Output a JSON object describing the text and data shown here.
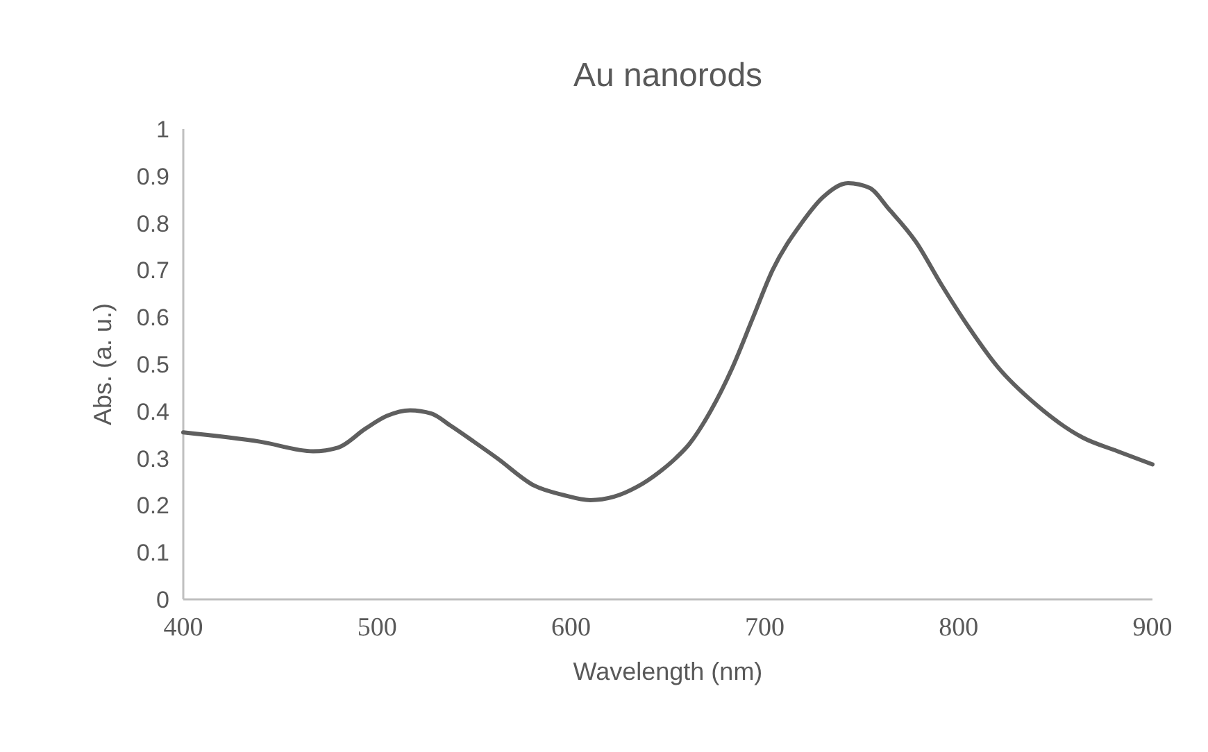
{
  "chart_data": {
    "type": "line",
    "title": "Au nanorods",
    "xlabel": "Wavelength (nm)",
    "ylabel": "Abs. (a. u.)",
    "x": [
      400,
      440,
      467,
      480,
      494,
      505,
      517,
      528,
      538,
      550,
      562,
      581,
      596,
      610,
      622,
      634,
      646,
      654,
      661,
      672,
      683,
      694,
      704,
      719,
      730,
      743,
      754,
      764,
      778,
      791,
      805,
      820,
      840,
      864,
      882,
      900
    ],
    "series": [
      {
        "color": "#5f5f5f",
        "values": [
          0.355,
          0.335,
          0.315,
          0.323,
          0.363,
          0.39,
          0.402,
          0.395,
          0.369,
          0.335,
          0.3,
          0.242,
          0.222,
          0.211,
          0.218,
          0.239,
          0.272,
          0.3,
          0.33,
          0.4,
          0.49,
          0.6,
          0.7,
          0.8,
          0.855,
          0.885,
          0.875,
          0.83,
          0.76,
          0.67,
          0.58,
          0.495,
          0.414,
          0.344,
          0.315,
          0.287
        ]
      }
    ],
    "xlim": [
      400,
      900
    ],
    "xticks": [
      400,
      500,
      600,
      700,
      800,
      900
    ],
    "ylim": [
      0,
      1
    ],
    "yticks": [
      0,
      0.1,
      0.2,
      0.3,
      0.4,
      0.5,
      0.6,
      0.7,
      0.8,
      0.9,
      1
    ],
    "grid": false,
    "marker": "none",
    "line_style": "solid"
  }
}
